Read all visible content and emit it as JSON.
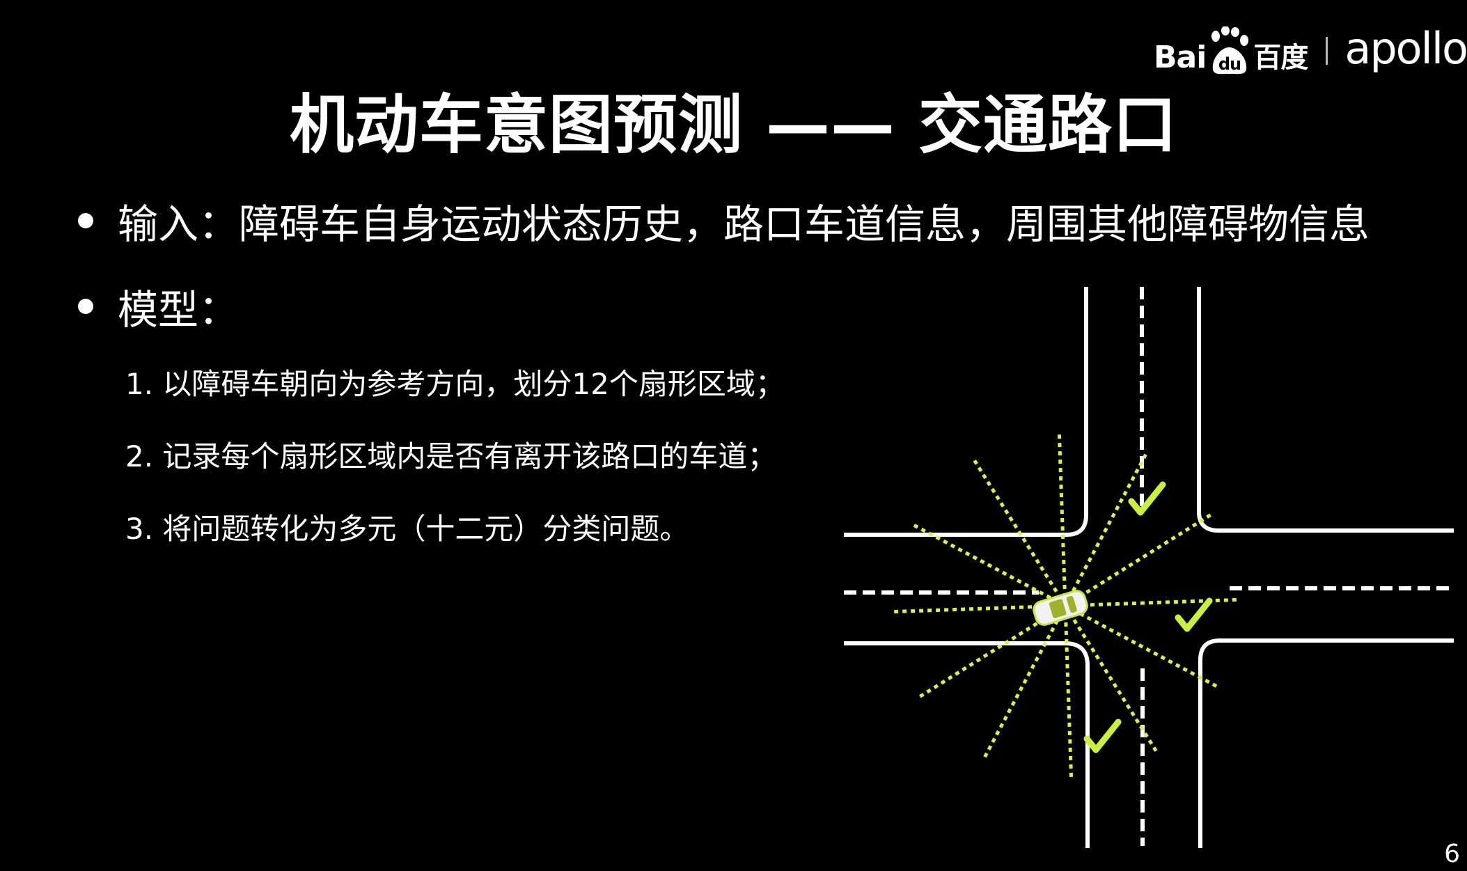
{
  "logo": {
    "brand_left": "Bai",
    "brand_du": "du",
    "brand_cn": "百度",
    "brand_right": "apollo"
  },
  "title": "机动车意图预测 —— 交通路口",
  "bullets": [
    {
      "text": "输入：障碍车自身运动状态历史，路口车道信息，周围其他障碍物信息"
    },
    {
      "text": "模型："
    }
  ],
  "steps": [
    {
      "text": "1. 以障碍车朝向为参考方向，划分12个扇形区域；"
    },
    {
      "text": "2. 记录每个扇形区域内是否有离开该路口的车道；"
    },
    {
      "text": "3. 将问题转化为多元（十二元）分类问题。"
    }
  ],
  "page_number": "6",
  "colors": {
    "background": "#000000",
    "road_lines": "#ffffff",
    "sector_rays": "#d7f53d",
    "check_marks": "#c8f03c"
  },
  "diagram": {
    "sector_count": 12,
    "check_count": 3
  }
}
